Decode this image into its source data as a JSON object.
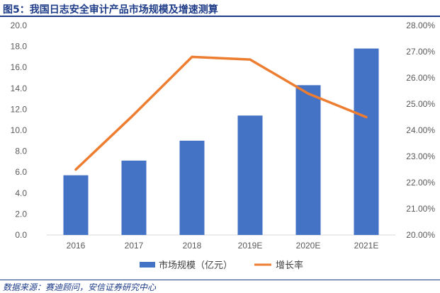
{
  "figure_title": "图5：我国日志安全审计产品市场规模及增速测算",
  "source": "数据来源：赛迪顾问，安信证券研究中心",
  "colors": {
    "bar": "#4472c4",
    "line": "#ed7d31",
    "title": "#1f3c88",
    "tick": "#595959"
  },
  "chart_data": {
    "type": "bar",
    "categories": [
      "2016",
      "2017",
      "2018",
      "2019E",
      "2020E",
      "2021E"
    ],
    "series": [
      {
        "name": "市场规模（亿元）",
        "type": "bar",
        "axis": "left",
        "values": [
          5.7,
          7.1,
          9.0,
          11.4,
          14.3,
          17.8
        ]
      },
      {
        "name": "增长率",
        "type": "line",
        "axis": "right",
        "values": [
          22.5,
          24.6,
          26.8,
          26.7,
          25.4,
          24.5
        ]
      }
    ],
    "left_axis": {
      "ylim": [
        0,
        20
      ],
      "ticks": [
        "0.0",
        "2.0",
        "4.0",
        "6.0",
        "8.0",
        "10.0",
        "12.0",
        "14.0",
        "16.0",
        "18.0",
        "20.0"
      ]
    },
    "right_axis": {
      "ylim": [
        20,
        28
      ],
      "unit": "%",
      "ticks": [
        "20.00%",
        "21.00%",
        "22.00%",
        "23.00%",
        "24.00%",
        "25.00%",
        "26.00%",
        "27.00%",
        "28.00%"
      ]
    },
    "legend_position": "bottom",
    "grid": false
  }
}
